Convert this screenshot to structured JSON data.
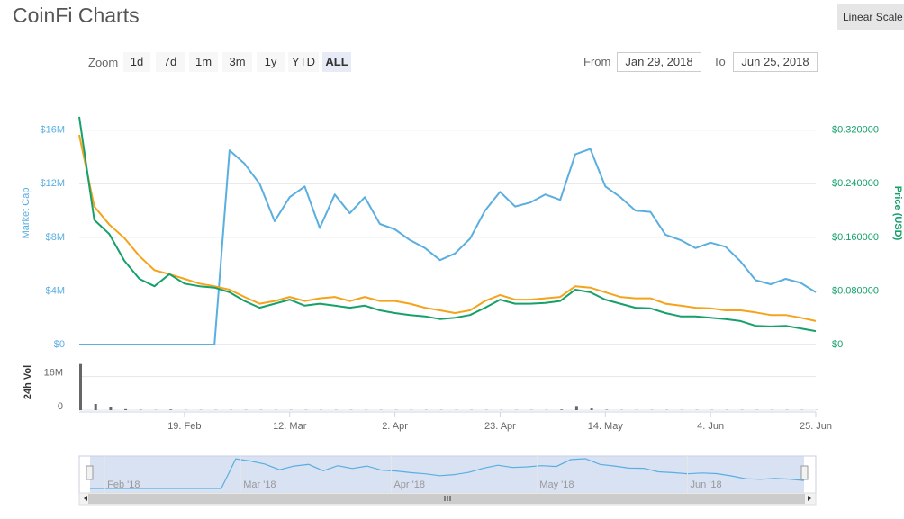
{
  "header": {
    "title": "CoinFi Charts",
    "scale_button": "Linear Scale"
  },
  "zoom": {
    "label": "Zoom",
    "buttons": [
      "1d",
      "7d",
      "1m",
      "3m",
      "1y",
      "YTD",
      "ALL"
    ],
    "active": 6
  },
  "range": {
    "from_label": "From",
    "from": "Jan 29, 2018",
    "to_label": "To",
    "to": "Jun 25, 2018"
  },
  "chart_data": {
    "type": "line",
    "ylabel": "Market Cap",
    "y2label": "Price (USD)",
    "x": [
      "2018-01-29",
      "2018-02-01",
      "2018-02-04",
      "2018-02-07",
      "2018-02-10",
      "2018-02-13",
      "2018-02-16",
      "2018-02-19",
      "2018-02-22",
      "2018-02-25",
      "2018-02-28",
      "2018-03-03",
      "2018-03-06",
      "2018-03-09",
      "2018-03-12",
      "2018-03-15",
      "2018-03-18",
      "2018-03-21",
      "2018-03-24",
      "2018-03-27",
      "2018-03-30",
      "2018-04-02",
      "2018-04-05",
      "2018-04-08",
      "2018-04-11",
      "2018-04-14",
      "2018-04-17",
      "2018-04-20",
      "2018-04-23",
      "2018-04-26",
      "2018-04-29",
      "2018-05-02",
      "2018-05-05",
      "2018-05-08",
      "2018-05-11",
      "2018-05-14",
      "2018-05-17",
      "2018-05-20",
      "2018-05-23",
      "2018-05-26",
      "2018-05-29",
      "2018-06-01",
      "2018-06-04",
      "2018-06-07",
      "2018-06-10",
      "2018-06-13",
      "2018-06-16",
      "2018-06-19",
      "2018-06-22",
      "2018-06-25"
    ],
    "xlim": [
      "2018-01-29",
      "2018-06-25"
    ],
    "xticks": [
      {
        "value": "2018-02-19",
        "label": "19. Feb"
      },
      {
        "value": "2018-03-12",
        "label": "12. Mar"
      },
      {
        "value": "2018-04-02",
        "label": "2. Apr"
      },
      {
        "value": "2018-04-23",
        "label": "23. Apr"
      },
      {
        "value": "2018-05-14",
        "label": "14. May"
      },
      {
        "value": "2018-06-04",
        "label": "4. Jun"
      },
      {
        "value": "2018-06-25",
        "label": "25. Jun"
      }
    ],
    "ylim": [
      0,
      18000000
    ],
    "yticks": [
      {
        "value": 0,
        "label": "$0"
      },
      {
        "value": 4000000,
        "label": "$4M"
      },
      {
        "value": 8000000,
        "label": "$8M"
      },
      {
        "value": 12000000,
        "label": "$12M"
      },
      {
        "value": 16000000,
        "label": "$16M"
      }
    ],
    "y2lim": [
      0,
      0.36
    ],
    "y2ticks": [
      {
        "value": 0,
        "label": "$0"
      },
      {
        "value": 0.08,
        "label": "$0.080000"
      },
      {
        "value": 0.16,
        "label": "$0.160000"
      },
      {
        "value": 0.24,
        "label": "$0.240000"
      },
      {
        "value": 0.32,
        "label": "$0.320000"
      }
    ],
    "grid": true,
    "series": [
      {
        "color": "#5aaee0",
        "axis": "y",
        "values": [
          0,
          0,
          0,
          0,
          0,
          0,
          0,
          0,
          0,
          0,
          14500000,
          13500000,
          12000000,
          9200000,
          11000000,
          11800000,
          8700000,
          11200000,
          9800000,
          11000000,
          9000000,
          8600000,
          7800000,
          7200000,
          6300000,
          6800000,
          7900000,
          10000000,
          11400000,
          10300000,
          10600000,
          11200000,
          10800000,
          14200000,
          14600000,
          11800000,
          11000000,
          10000000,
          9900000,
          8200000,
          7800000,
          7200000,
          7600000,
          7300000,
          6200000,
          4800000,
          4500000,
          4900000,
          4600000,
          3900000
        ]
      },
      {
        "color": "#f5a31a",
        "axis": "y2",
        "values": [
          0.313,
          0.206,
          0.179,
          0.159,
          0.132,
          0.111,
          0.105,
          0.098,
          0.091,
          0.087,
          0.082,
          0.071,
          0.061,
          0.065,
          0.071,
          0.065,
          0.069,
          0.071,
          0.065,
          0.071,
          0.065,
          0.065,
          0.061,
          0.055,
          0.051,
          0.047,
          0.051,
          0.065,
          0.074,
          0.067,
          0.067,
          0.069,
          0.071,
          0.087,
          0.085,
          0.078,
          0.071,
          0.069,
          0.069,
          0.061,
          0.058,
          0.055,
          0.054,
          0.051,
          0.051,
          0.048,
          0.044,
          0.044,
          0.04,
          0.035
        ]
      },
      {
        "color": "#16a06a",
        "axis": "y2",
        "values": [
          0.34,
          0.186,
          0.165,
          0.125,
          0.098,
          0.087,
          0.105,
          0.091,
          0.087,
          0.085,
          0.078,
          0.065,
          0.055,
          0.061,
          0.067,
          0.058,
          0.061,
          0.058,
          0.055,
          0.058,
          0.051,
          0.047,
          0.044,
          0.042,
          0.038,
          0.04,
          0.044,
          0.055,
          0.067,
          0.061,
          0.061,
          0.062,
          0.065,
          0.082,
          0.078,
          0.067,
          0.061,
          0.055,
          0.054,
          0.047,
          0.042,
          0.042,
          0.04,
          0.038,
          0.035,
          0.028,
          0.027,
          0.028,
          0.024,
          0.02
        ]
      }
    ],
    "volume": {
      "label": "24h Vol",
      "color": "#666666",
      "ylim": [
        0,
        24000000
      ],
      "yticks": [
        0,
        {
          "value": 16000000,
          "label": "16M"
        }
      ],
      "values": [
        22000000,
        3000000,
        1500000,
        500000,
        200000,
        100000,
        300000,
        100000,
        100000,
        100000,
        100000,
        100000,
        100000,
        100000,
        100000,
        100000,
        100000,
        100000,
        100000,
        100000,
        100000,
        100000,
        100000,
        100000,
        100000,
        100000,
        100000,
        100000,
        100000,
        100000,
        100000,
        100000,
        300000,
        2000000,
        800000,
        200000,
        100000,
        100000,
        100000,
        100000,
        100000,
        100000,
        100000,
        100000,
        100000,
        100000,
        100000,
        100000,
        100000,
        100000
      ]
    },
    "navigator": {
      "ticks": [
        {
          "value": "2018-02-01",
          "label": "Feb '18"
        },
        {
          "value": "2018-03-01",
          "label": "Mar '18"
        },
        {
          "value": "2018-04-01",
          "label": "Apr '18"
        },
        {
          "value": "2018-05-01",
          "label": "May '18"
        },
        {
          "value": "2018-06-01",
          "label": "Jun '18"
        }
      ]
    }
  }
}
